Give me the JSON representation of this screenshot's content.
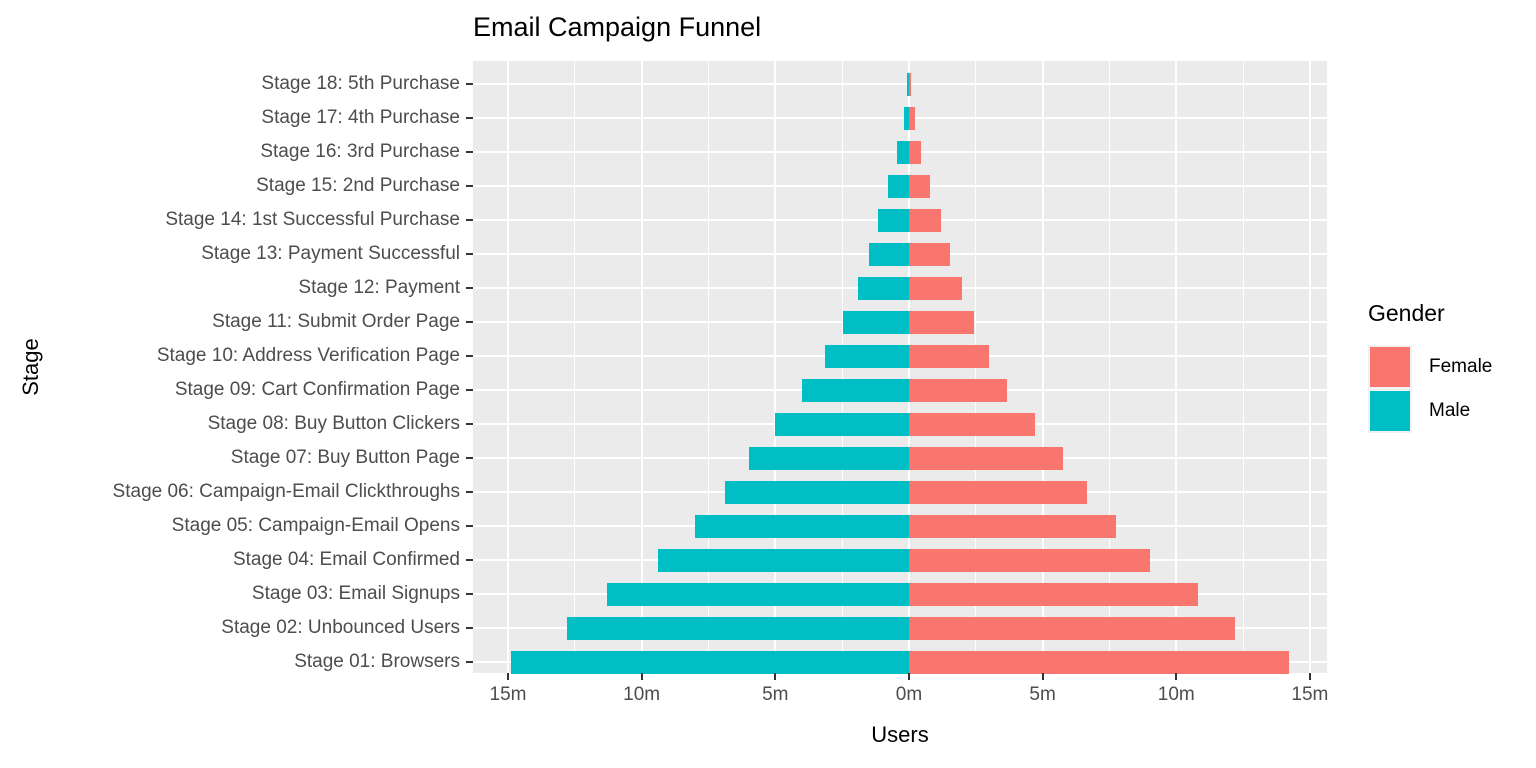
{
  "chart_data": {
    "type": "bar",
    "variant": "diverging-horizontal-funnel",
    "title": "Email Campaign Funnel",
    "xlabel": "Users",
    "ylabel": "Stage",
    "legend": {
      "title": "Gender",
      "position": "right",
      "entries": [
        "Female",
        "Male"
      ]
    },
    "panel_background": "#EBEBEB",
    "grid": {
      "color": "#FFFFFF",
      "major": true,
      "minor": true
    },
    "axis_text_color": "#4D4D4D",
    "categories": [
      "Stage 18: 5th Purchase",
      "Stage 17: 4th Purchase",
      "Stage 16: 3rd Purchase",
      "Stage 15: 2nd Purchase",
      "Stage 14: 1st Successful Purchase",
      "Stage 13: Payment Successful",
      "Stage 12: Payment",
      "Stage 11: Submit Order Page",
      "Stage 10: Address Verification Page",
      "Stage 09: Cart Confirmation Page",
      "Stage 08: Buy Button Clickers",
      "Stage 07: Buy Button Page",
      "Stage 06: Campaign-Email Clickthroughs",
      "Stage 05: Campaign-Email Opens",
      "Stage 04: Email Confirmed",
      "Stage 03: Email Signups",
      "Stage 02: Unbounced Users",
      "Stage 01: Browsers"
    ],
    "series": [
      {
        "name": "Female",
        "color": "#F8766D",
        "side": "right",
        "values_millions": [
          0.08,
          0.22,
          0.46,
          0.78,
          1.2,
          1.55,
          2.0,
          2.45,
          3.0,
          3.65,
          4.7,
          5.75,
          6.65,
          7.75,
          9.0,
          10.8,
          12.2,
          14.2
        ]
      },
      {
        "name": "Male",
        "color": "#00BFC4",
        "side": "left",
        "values_millions": [
          0.08,
          0.19,
          0.44,
          0.78,
          1.15,
          1.5,
          1.9,
          2.45,
          3.15,
          4.0,
          5.0,
          6.0,
          6.9,
          8.0,
          9.4,
          11.3,
          12.8,
          14.9
        ]
      }
    ],
    "x_ticks": [
      {
        "value": -15,
        "label": "15m"
      },
      {
        "value": -10,
        "label": "10m"
      },
      {
        "value": -5,
        "label": "5m"
      },
      {
        "value": 0,
        "label": "0m"
      },
      {
        "value": 5,
        "label": "5m"
      },
      {
        "value": 10,
        "label": "10m"
      },
      {
        "value": 15,
        "label": "15m"
      }
    ],
    "x_minor_ticks": [
      -12.5,
      -7.5,
      -2.5,
      2.5,
      7.5,
      12.5
    ],
    "xlim": [
      -16.31,
      15.64
    ]
  }
}
